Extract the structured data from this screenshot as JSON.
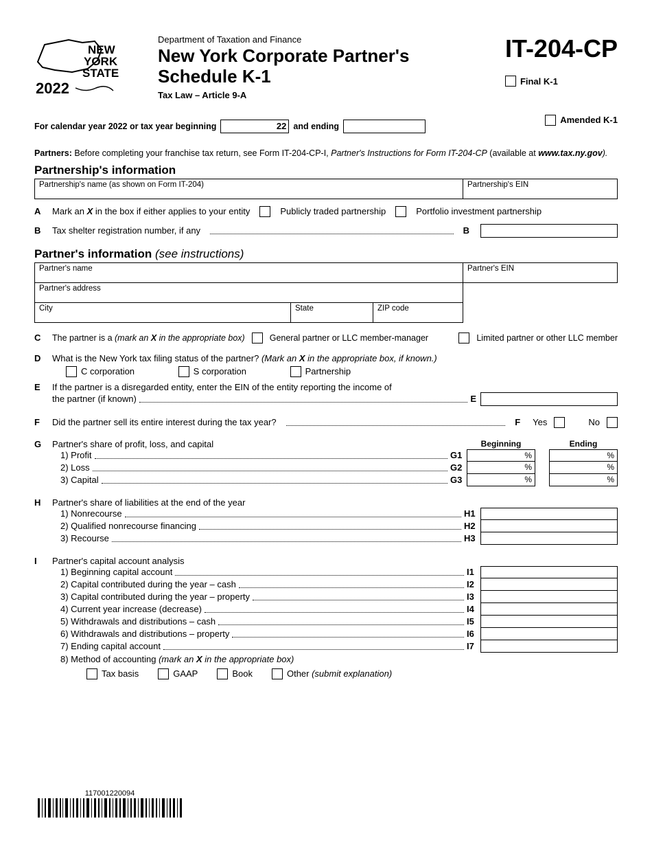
{
  "header": {
    "logo_lines": [
      "NEW",
      "YORK",
      "STATE"
    ],
    "logo_year": "2022",
    "dept": "Department of Taxation and Finance",
    "title_l1": "New York Corporate Partner's",
    "title_l2": "Schedule K-1",
    "subtitle": "Tax Law – Article 9-A",
    "form_code": "IT-204-CP",
    "final_k1": "Final K-1",
    "amended_k1": "Amended K-1"
  },
  "year_line": {
    "prefix": "For calendar year 2022 or tax year beginning",
    "begin_suffix": "22",
    "and_ending": "and ending"
  },
  "partners_note": {
    "bold": "Partners:",
    "text": " Before completing your franchise tax return, see Form IT-204-CP-I, ",
    "ital": "Partner's Instructions for Form IT-204-CP",
    "tail": " (available at ",
    "link": "www.tax.ny.gov",
    "close": ")."
  },
  "partnership_info": {
    "heading": "Partnership's information",
    "name_label": "Partnership's name (as shown on Form IT-204)",
    "ein_label": "Partnership's EIN"
  },
  "lineA": {
    "letter": "A",
    "text": "Mark an ",
    "x": "X",
    "text2": " in the box if either applies to your entity",
    "opt1": "Publicly traded partnership",
    "opt2": "Portfolio investment partnership"
  },
  "lineB": {
    "letter": "B",
    "text": "Tax shelter registration number, if any",
    "code": "B"
  },
  "partner_info": {
    "heading": "Partner's information",
    "heading_ital": "(see instructions)",
    "name_label": "Partner's name",
    "ein_label": "Partner's EIN",
    "addr_label": "Partner's address",
    "city_label": "City",
    "state_label": "State",
    "zip_label": "ZIP code"
  },
  "lineC": {
    "letter": "C",
    "text": "The partner is a ",
    "ital": "(mark an ",
    "x": "X",
    "ital2": " in the appropriate box)",
    "opt1": "General partner or LLC member-manager",
    "opt2": "Limited partner or other LLC member"
  },
  "lineD": {
    "letter": "D",
    "text": "What is the New York tax filing status of the partner? ",
    "ital": "(Mark an ",
    "x": "X",
    "ital2": " in the appropriate box, if known.)",
    "opt1": "C corporation",
    "opt2": "S corporation",
    "opt3": "Partnership"
  },
  "lineE": {
    "letter": "E",
    "text1": "If the partner is a disregarded entity, enter the EIN of the entity reporting the income of",
    "text2": "the partner (if known)",
    "code": "E"
  },
  "lineF": {
    "letter": "F",
    "text": "Did the partner sell its entire interest during the tax year?",
    "code": "F",
    "yes": "Yes",
    "no": "No"
  },
  "lineG": {
    "letter": "G",
    "text": "Partner's share of profit, loss, and capital",
    "beginning": "Beginning",
    "ending": "Ending",
    "rows": [
      {
        "label": "1) Profit",
        "code": "G1"
      },
      {
        "label": "2) Loss",
        "code": "G2"
      },
      {
        "label": "3) Capital",
        "code": "G3"
      }
    ],
    "pct": "%"
  },
  "lineH": {
    "letter": "H",
    "text": "Partner's share of liabilities at the end of the year",
    "rows": [
      {
        "label": "1) Nonrecourse",
        "code": "H1"
      },
      {
        "label": "2) Qualified nonrecourse financing",
        "code": "H2"
      },
      {
        "label": "3) Recourse",
        "code": "H3"
      }
    ]
  },
  "lineI": {
    "letter": "I",
    "text": "Partner's capital account analysis",
    "rows": [
      {
        "label": "1) Beginning capital account",
        "code": "I1"
      },
      {
        "label": "2) Capital contributed during the year – cash",
        "code": "I2"
      },
      {
        "label": "3) Capital contributed during the year – property",
        "code": "I3"
      },
      {
        "label": "4) Current year increase (decrease)",
        "code": "I4"
      },
      {
        "label": "5) Withdrawals and distributions – cash",
        "code": "I5"
      },
      {
        "label": "6) Withdrawals and distributions – property",
        "code": "I6"
      },
      {
        "label": "7) Ending capital account",
        "code": "I7"
      }
    ],
    "method_label": "8) Method of accounting ",
    "method_ital": "(mark an ",
    "x": "X",
    "method_ital2": " in the appropriate box)",
    "methods": [
      "Tax basis",
      "GAAP",
      "Book",
      "Other "
    ],
    "other_ital": "(submit explanation)"
  },
  "barcode_num": "117001220094"
}
